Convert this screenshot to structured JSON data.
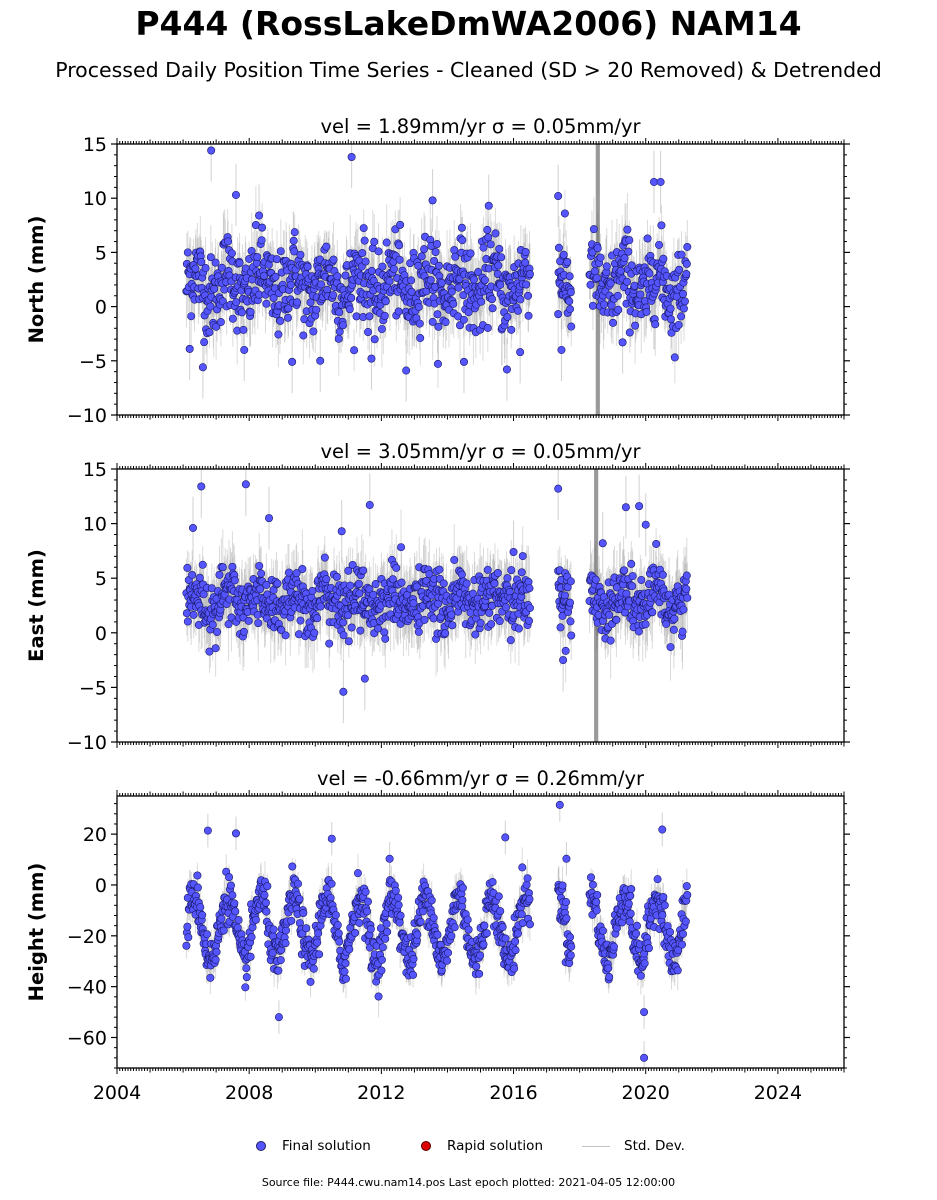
{
  "title": "P444 (RossLakeDmWA2006) NAM14",
  "subtitle": "Processed Daily Position Time Series - Cleaned (SD > 20 Removed) & Detrended",
  "legend": {
    "final": "Final solution",
    "rapid": "Rapid solution",
    "stddev": "Std. Dev."
  },
  "footer": "Source file: P444.cwu.nam14.pos  Last epoch plotted: 2021-04-05 12:00:00",
  "colors": {
    "final_fill": "#5555ff",
    "final_edge": "#1a1a66",
    "rapid_fill": "#dd0000",
    "stddev": "#999999"
  },
  "chart_data": [
    {
      "type": "scatter",
      "panel": "north",
      "title": "vel = 1.89mm/yr   σ = 0.05mm/yr",
      "ylabel": "North (mm)",
      "xlabel": "",
      "xlim": [
        2004.0,
        2026.0
      ],
      "ylim": [
        -10,
        15
      ],
      "yticks": [
        -10,
        -5,
        0,
        5,
        10,
        15
      ],
      "x_tick_labels_visible": false,
      "grid": false,
      "series": [
        {
          "name": "Final solution",
          "mean": 2.0,
          "seasonal_amplitude": 1.3,
          "noise_sd": 1.9,
          "x": [
            2006.2,
            2006.6,
            2006.85,
            2007.6,
            2007.85,
            2008.3,
            2009.3,
            2010.15,
            2011.1,
            2011.7,
            2012.75,
            2013.55,
            2014.5,
            2015.25,
            2015.8,
            2016.2,
            2017.35,
            2017.45,
            2019.3,
            2020.25,
            2020.45
          ],
          "y": [
            -3.9,
            -5.6,
            14.4,
            10.3,
            -4.0,
            8.4,
            -5.1,
            -5.0,
            13.8,
            -4.8,
            -5.9,
            9.8,
            -5.1,
            9.3,
            -5.8,
            -4.2,
            10.2,
            -4.0,
            -3.3,
            11.5,
            11.5
          ]
        },
        {
          "name": "Rapid solution",
          "x": [],
          "y": []
        }
      ],
      "data_spans": [
        [
          2006.1,
          2016.5
        ],
        [
          2017.35,
          2017.75
        ],
        [
          2018.3,
          2021.26
        ]
      ],
      "stddev_spike_at": 2018.55
    },
    {
      "type": "scatter",
      "panel": "east",
      "title": "vel = 3.05mm/yr   σ = 0.05mm/yr",
      "ylabel": "East (mm)",
      "xlabel": "",
      "xlim": [
        2004.0,
        2026.0
      ],
      "ylim": [
        -10,
        15
      ],
      "yticks": [
        -10,
        -5,
        0,
        5,
        10,
        15
      ],
      "x_tick_labels_visible": false,
      "grid": false,
      "series": [
        {
          "name": "Final solution",
          "mean": 2.9,
          "seasonal_amplitude": 0.7,
          "noise_sd": 1.4,
          "x": [
            2006.3,
            2006.55,
            2007.9,
            2008.6,
            2010.8,
            2010.85,
            2011.65,
            2011.5,
            2016.0,
            2017.35,
            2017.5,
            2018.7,
            2019.4,
            2019.8,
            2020.0
          ],
          "y": [
            9.6,
            13.4,
            13.6,
            10.5,
            9.3,
            -5.4,
            11.7,
            -4.2,
            7.4,
            13.2,
            -2.5,
            8.2,
            11.5,
            11.6,
            9.9
          ]
        },
        {
          "name": "Rapid solution",
          "x": [],
          "y": []
        }
      ],
      "data_spans": [
        [
          2006.1,
          2016.5
        ],
        [
          2017.35,
          2017.75
        ],
        [
          2018.3,
          2021.26
        ]
      ],
      "stddev_spike_at": 2018.5
    },
    {
      "type": "scatter",
      "panel": "height",
      "title": "vel = -0.66mm/yr   σ = 0.26mm/yr",
      "ylabel": "Height (mm)",
      "xlabel": "",
      "xlim": [
        2004.0,
        2026.0
      ],
      "ylim": [
        -72,
        35
      ],
      "yticks": [
        -60,
        -40,
        -20,
        0,
        20
      ],
      "x_ticks": [
        2004,
        2008,
        2012,
        2016,
        2020,
        2024
      ],
      "x_tick_labels": [
        "2004",
        "2008",
        "2012",
        "2016",
        "2020",
        "2024"
      ],
      "grid": false,
      "series": [
        {
          "name": "Final solution",
          "mean": -17.0,
          "seasonal_amplitude": 13.0,
          "noise_sd": 4.5,
          "x": [
            2006.75,
            2007.6,
            2008.9,
            2010.5,
            2012.25,
            2015.75,
            2017.4,
            2017.6,
            2019.95,
            2020.5,
            2019.95
          ],
          "y": [
            21.4,
            20.3,
            -52.0,
            18.2,
            10.3,
            18.7,
            31.5,
            10.3,
            -68.0,
            21.8,
            -50.0
          ]
        },
        {
          "name": "Rapid solution",
          "x": [],
          "y": []
        }
      ],
      "data_spans": [
        [
          2006.1,
          2016.5
        ],
        [
          2017.35,
          2017.75
        ],
        [
          2018.3,
          2021.26
        ]
      ],
      "stddev_spike_at": null
    }
  ]
}
